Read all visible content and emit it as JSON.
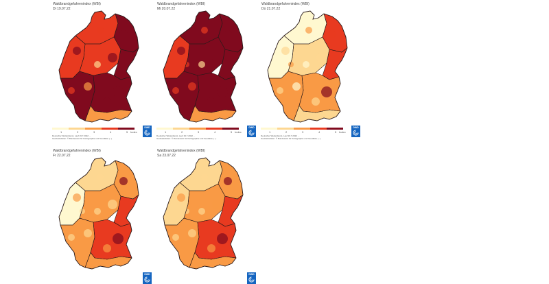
{
  "colors": {
    "c1": "#fff8d0",
    "c2": "#fdd791",
    "c3": "#f99a45",
    "c4": "#e83a20",
    "c5": "#800a1e",
    "border": "#2a1a1a",
    "dwd_blue": "#1565c0"
  },
  "maps": [
    {
      "title": "Waldbrandgefahrenindex (WBI)",
      "date": "Di 19.07.22",
      "footnote_line1": "Deutscher Wetterdienst, Lauf 19.7.2022 ...",
      "footnote_line2": "Geobasisdaten: © Bundesamt für Kartographie und Geodäsie (...)",
      "levels": {
        "north": 4,
        "northeast": 5,
        "west": 4,
        "center": 4,
        "east": 5,
        "southwest": 5,
        "southeast": 5,
        "alps": 3
      }
    },
    {
      "title": "Waldbrandgefahrenindex (WBI)",
      "date": "Mi 20.07.22",
      "footnote_line1": "Deutscher Wetterdienst, Lauf 19.7.2022 ...",
      "footnote_line2": "Geobasisdaten: © Bundesamt für Kartographie und Geodäsie (...)",
      "levels": {
        "north": 5,
        "northeast": 5,
        "west": 4,
        "center": 5,
        "east": 5,
        "southwest": 5,
        "southeast": 5,
        "alps": 3
      }
    },
    {
      "title": "Waldbrandgefahrenindex (WBI)",
      "date": "Do 21.07.22",
      "footnote_line1": "Deutscher Wetterdienst, Lauf 19.7.2022 ...",
      "footnote_line2": "Geobasisdaten: © Bundesamt für Kartographie und Geodäsie (...)",
      "levels": {
        "north": 1,
        "northeast": 4,
        "west": 1,
        "center": 2,
        "east": 4,
        "southwest": 3,
        "southeast": 3,
        "alps": 2
      }
    },
    {
      "title": "Waldbrandgefahrenindex (WBI)",
      "date": "Fr 22.07.22",
      "footnote_line1": "",
      "footnote_line2": "",
      "levels": {
        "north": 2,
        "northeast": 3,
        "west": 1,
        "center": 3,
        "east": 4,
        "southwest": 3,
        "southeast": 4,
        "alps": 3
      }
    },
    {
      "title": "Waldbrandgefahrenindex (WBI)",
      "date": "Sa 23.07.22",
      "footnote_line1": "",
      "footnote_line2": "",
      "levels": {
        "north": 2,
        "northeast": 3,
        "west": 2,
        "center": 3,
        "east": 4,
        "southwest": 3,
        "southeast": 4,
        "alps": 3
      }
    }
  ],
  "legend": {
    "tick_1": "1",
    "tick_2": "2",
    "tick_3": "3",
    "tick_4": "4",
    "tick_5": "5",
    "unit": "Index"
  },
  "logo_text": "DWD"
}
